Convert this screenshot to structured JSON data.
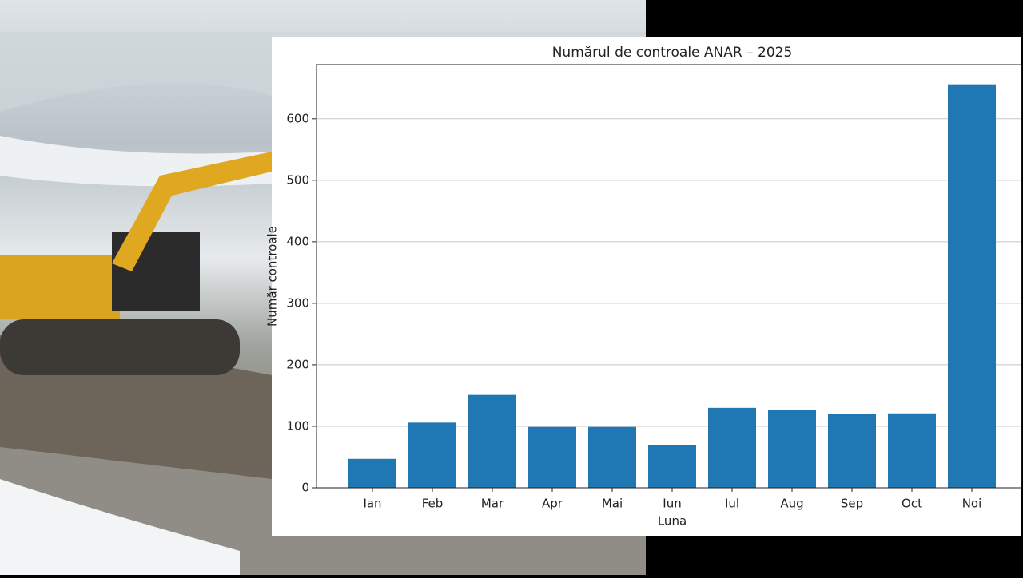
{
  "chart_data": {
    "type": "bar",
    "title": "Numărul de controale ANAR – 2025",
    "x_label": "Luna",
    "y_label": "Număr controale",
    "categories": [
      "Ian",
      "Feb",
      "Mar",
      "Apr",
      "Mai",
      "Iun",
      "Iul",
      "Aug",
      "Sep",
      "Oct",
      "Noi"
    ],
    "values": [
      47,
      106,
      151,
      99,
      99,
      69,
      130,
      126,
      120,
      121,
      656
    ],
    "color": "#1f77b4",
    "ylim": [
      0,
      688
    ],
    "yticks": [
      0,
      100,
      200,
      300,
      400,
      500,
      600
    ],
    "grid": true
  }
}
